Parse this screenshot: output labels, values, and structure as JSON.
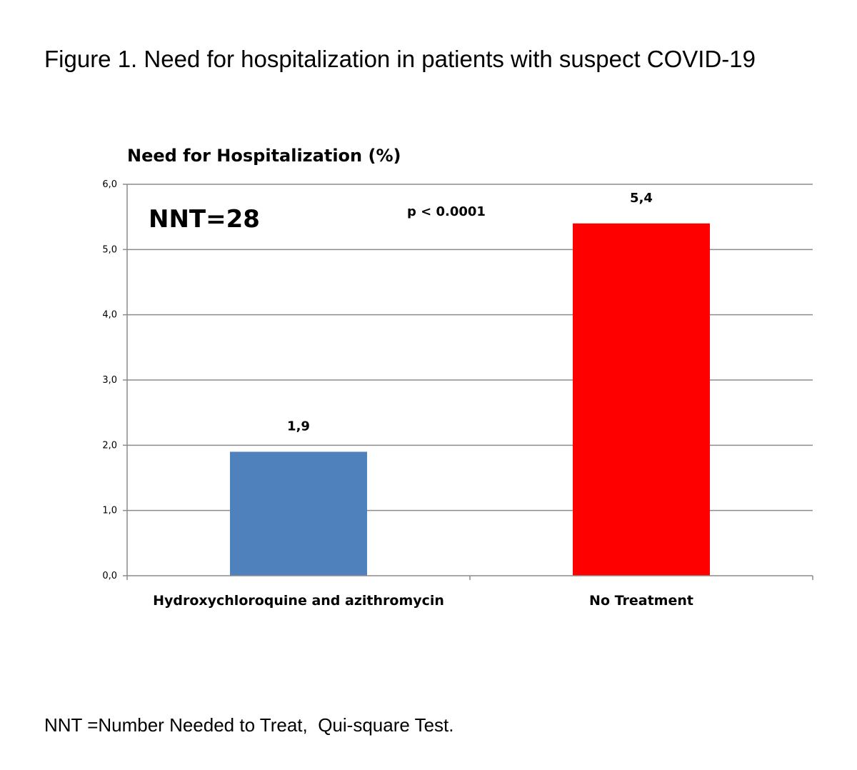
{
  "caption": "Figure 1. Need for hospitalization in patients with suspect COVID-19",
  "footnote": "NNT =Number Needed to Treat,  Qui-square Test.",
  "colors": {
    "bar_treated": "#4f81bd",
    "bar_untreated": "#ff0000",
    "grid": "#8c8c8c",
    "axis": "#8c8c8c"
  },
  "chart_data": {
    "type": "bar",
    "title": "Need  for Hospitalization (%)",
    "categories": [
      "Hydroxychloroquine and azithromycin",
      "No Treatment"
    ],
    "values": [
      1.9,
      5.4
    ],
    "data_labels": [
      "1,9",
      "5,4"
    ],
    "bar_colors": [
      "#4f81bd",
      "#ff0000"
    ],
    "ylim": [
      0,
      6
    ],
    "yticks": [
      0,
      1,
      2,
      3,
      4,
      5,
      6
    ],
    "ytick_labels": [
      "0,0",
      "1,0",
      "2,0",
      "3,0",
      "4,0",
      "5,0",
      "6,0"
    ],
    "grid": true,
    "annotations": [
      "NNT=28",
      "p < 0.0001"
    ]
  }
}
